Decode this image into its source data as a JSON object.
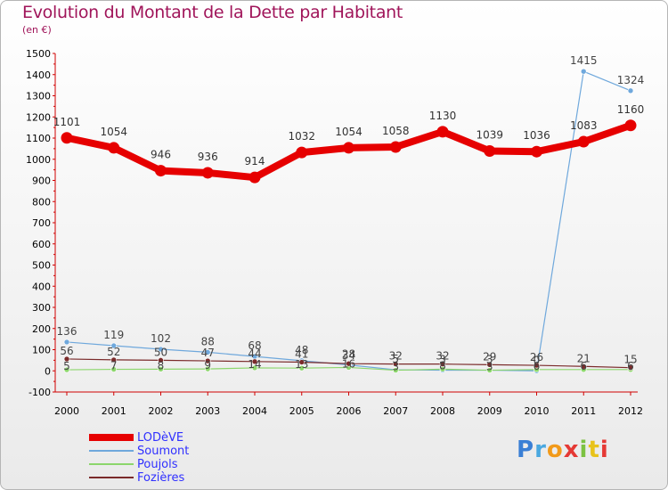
{
  "header": {
    "title": "Evolution du Montant de la Dette par Habitant",
    "unit": "(en €)"
  },
  "logo": {
    "text": "Proxiti",
    "colors": [
      "#3a7fd5",
      "#4aa8e0",
      "#f29a1a",
      "#e53935",
      "#7cc242",
      "#e8c31a"
    ]
  },
  "chart_data": {
    "type": "line",
    "title": "Evolution du Montant de la Dette par Habitant",
    "ylabel": "(en €)",
    "xlabel": "",
    "x": [
      "2000",
      "2001",
      "2002",
      "2003",
      "2004",
      "2005",
      "2006",
      "2007",
      "2008",
      "2009",
      "2010",
      "2011",
      "2012"
    ],
    "ylim": [
      -100,
      1500
    ],
    "yticks": [
      -100,
      0,
      100,
      200,
      300,
      400,
      500,
      600,
      700,
      800,
      900,
      1000,
      1100,
      1200,
      1300,
      1400,
      1500
    ],
    "grid": false,
    "legend_position": "bottom-left",
    "series": [
      {
        "name": "LODèVE",
        "color": "#e60000",
        "values": [
          1101,
          1054,
          946,
          936,
          914,
          1032,
          1054,
          1058,
          1130,
          1039,
          1036,
          1083,
          1160
        ]
      },
      {
        "name": "Soumont",
        "color": "#6fa8dc",
        "values": [
          136,
          119,
          102,
          88,
          68,
          48,
          28,
          5,
          3,
          3,
          0,
          1415,
          1324
        ]
      },
      {
        "name": "Poujols",
        "color": "#8cd66c",
        "values": [
          5,
          7,
          8,
          9,
          14,
          13,
          16,
          3,
          8,
          3,
          6,
          6,
          6
        ]
      },
      {
        "name": "Fozières",
        "color": "#7a2a2a",
        "values": [
          56,
          52,
          50,
          47,
          44,
          41,
          34,
          32,
          32,
          29,
          26,
          21,
          15
        ]
      }
    ]
  }
}
